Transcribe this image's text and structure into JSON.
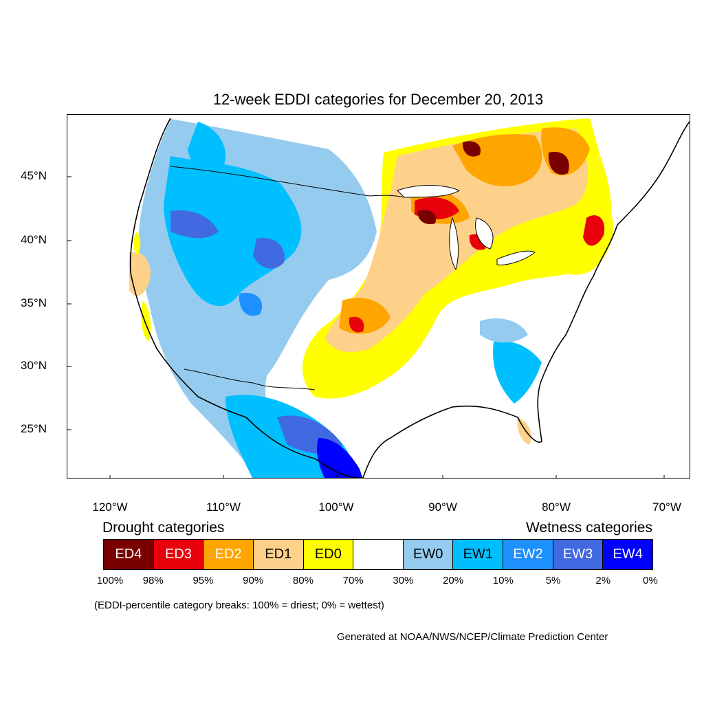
{
  "title": "12-week EDDI categories for December 20, 2013",
  "map": {
    "lat_ticks": [
      "45°N",
      "40°N",
      "35°N",
      "30°N",
      "25°N"
    ],
    "lon_ticks": [
      "120°W",
      "110°W",
      "100°W",
      "90°W",
      "80°W",
      "70°W"
    ],
    "lat_range": [
      21,
      49.5
    ],
    "lon_range": [
      -124,
      -68.5
    ]
  },
  "legend": {
    "drought_title": "Drought categories",
    "wetness_title": "Wetness categories",
    "categories": [
      {
        "label": "ED4",
        "color": "#7a0000",
        "text_color": "#ffffff"
      },
      {
        "label": "ED3",
        "color": "#e8000b",
        "text_color": "#ffffff"
      },
      {
        "label": "ED2",
        "color": "#ffa500",
        "text_color": "#ffffff"
      },
      {
        "label": "ED1",
        "color": "#fdd189",
        "text_color": "#000000"
      },
      {
        "label": "ED0",
        "color": "#ffff00",
        "text_color": "#000000"
      },
      {
        "label": "",
        "color": "#ffffff",
        "text_color": "#000000"
      },
      {
        "label": "EW0",
        "color": "#95cbee",
        "text_color": "#000000"
      },
      {
        "label": "EW1",
        "color": "#00bfff",
        "text_color": "#000000"
      },
      {
        "label": "EW2",
        "color": "#1e90ff",
        "text_color": "#ffffff"
      },
      {
        "label": "EW3",
        "color": "#4169e1",
        "text_color": "#ffffff"
      },
      {
        "label": "EW4",
        "color": "#0000ff",
        "text_color": "#ffffff"
      }
    ],
    "percentiles": [
      "100%",
      "98%",
      "95%",
      "90%",
      "80%",
      "70%",
      "30%",
      "20%",
      "10%",
      "5%",
      "2%",
      "0%"
    ]
  },
  "note": "(EDDI-percentile category breaks: 100% = driest; 0% = wettest)",
  "credit": "Generated at NOAA/NWS/NCEP/Climate Prediction Center"
}
